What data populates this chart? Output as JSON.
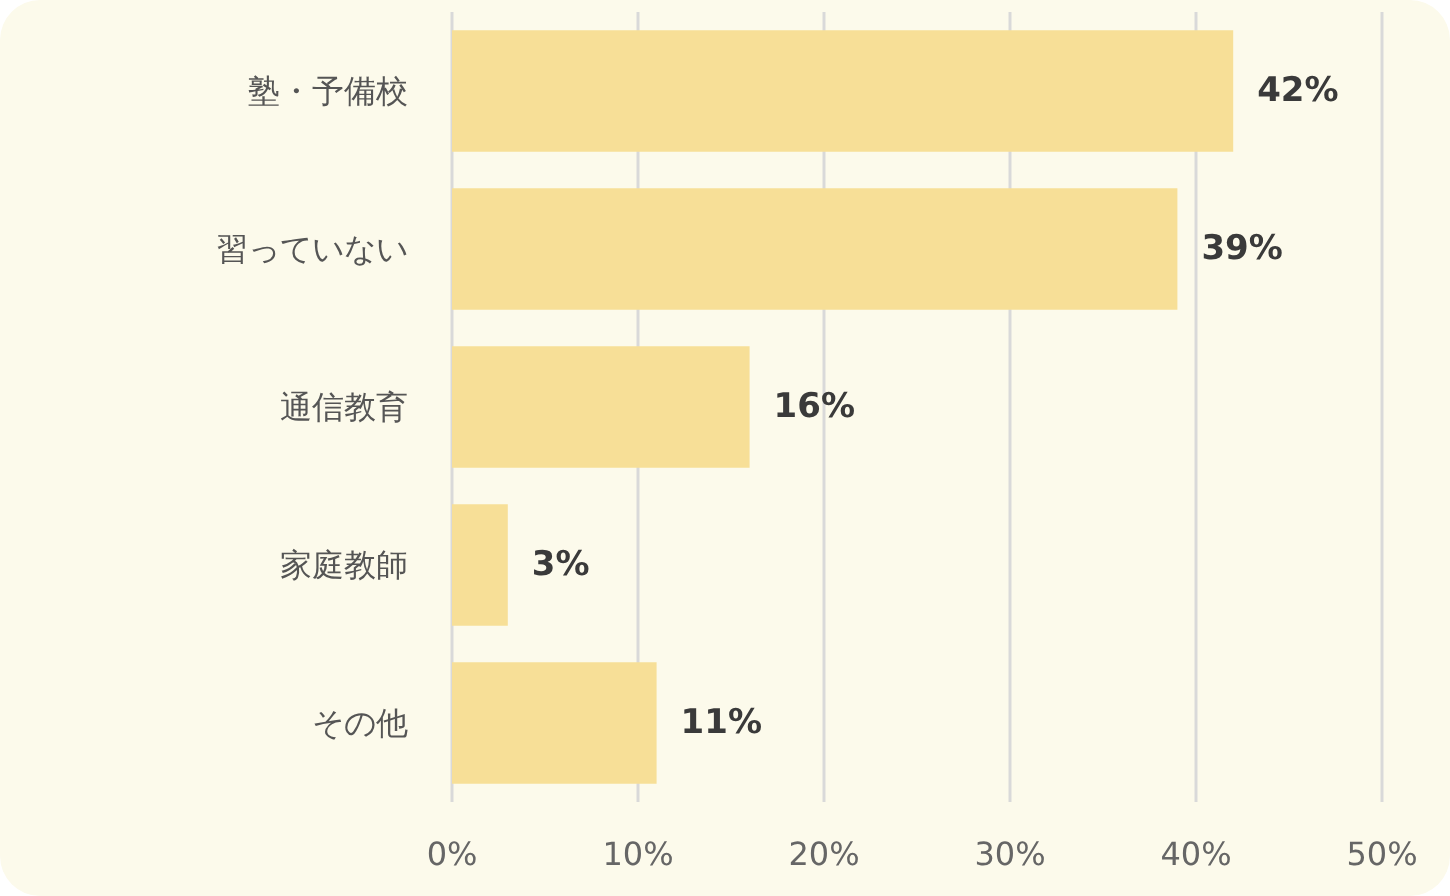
{
  "chart_data": {
    "type": "bar",
    "orientation": "horizontal",
    "categories": [
      "塾・予備校",
      "習っていない",
      "通信教育",
      "家庭教師",
      "その他"
    ],
    "values": [
      42,
      39,
      16,
      3,
      11
    ],
    "value_labels": [
      "42%",
      "39%",
      "16%",
      "3%",
      "11%"
    ],
    "color": "#f7df97",
    "xlim": [
      0,
      50
    ],
    "xticks": [
      {
        "value": 0,
        "label": "0%"
      },
      {
        "value": 10,
        "label": "10%"
      },
      {
        "value": 20,
        "label": "20%"
      },
      {
        "value": 30,
        "label": "30%"
      },
      {
        "value": 40,
        "label": "40%"
      },
      {
        "value": 50,
        "label": "50%"
      }
    ],
    "grid": "x"
  }
}
